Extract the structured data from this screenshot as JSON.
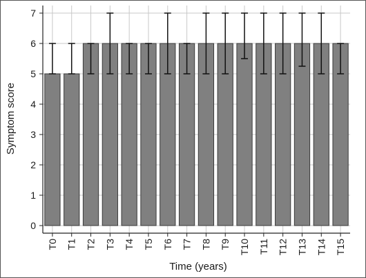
{
  "chart_data": {
    "type": "bar",
    "xlabel": "Time (years)",
    "ylabel": "Symptom score",
    "ylim": [
      0,
      7
    ],
    "yticks": [
      0,
      1,
      2,
      3,
      4,
      5,
      6,
      7
    ],
    "grid": "horizontal and vertical, light gray",
    "categories": [
      "T0",
      "T1",
      "T2",
      "T3",
      "T4",
      "T5",
      "T6",
      "T7",
      "T8",
      "T9",
      "T10",
      "T11",
      "T12",
      "T13",
      "T14",
      "T15"
    ],
    "values": [
      5,
      5,
      6,
      6,
      6,
      6,
      6,
      6,
      6,
      6,
      6,
      6,
      6,
      6,
      6,
      6
    ],
    "error_low": [
      5,
      5,
      5,
      5,
      5,
      5,
      5,
      5,
      5,
      5,
      5.5,
      5,
      5,
      5.25,
      5,
      5
    ],
    "error_high": [
      6,
      6,
      6,
      7,
      6,
      6,
      7,
      6,
      7,
      7,
      7,
      7,
      7,
      7,
      7,
      6
    ],
    "bar_color": "#808080",
    "bar_edge_color": "#3a3a3a",
    "error_color": "#111111",
    "grid_color": "#c8c8c8"
  }
}
